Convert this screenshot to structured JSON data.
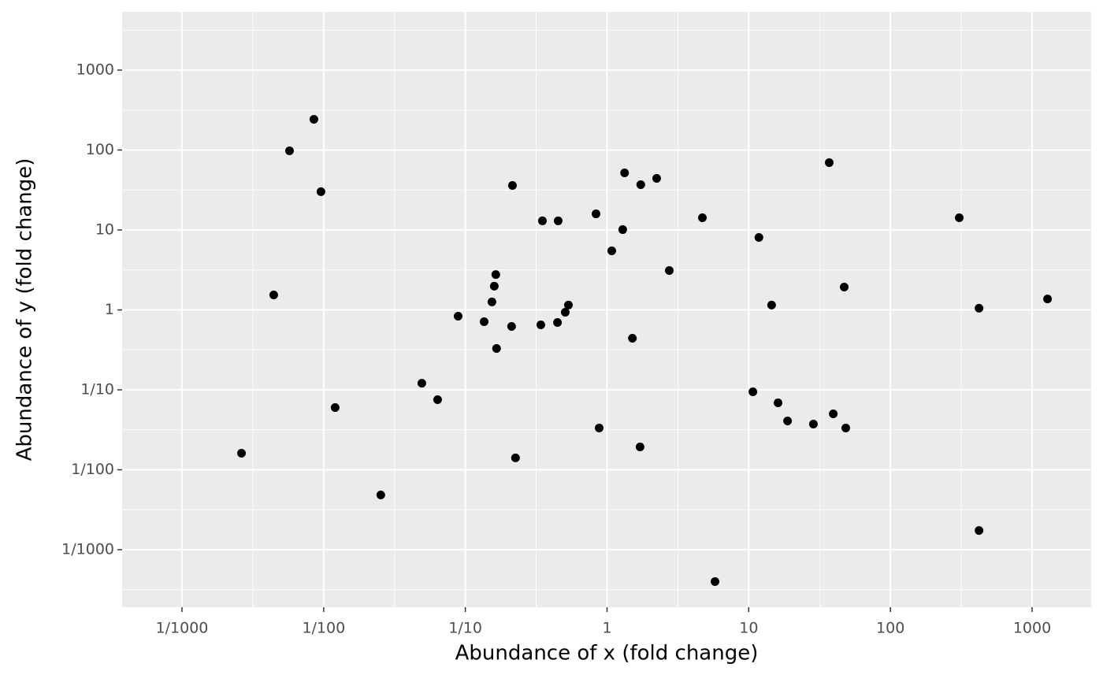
{
  "chart_data": {
    "type": "scatter",
    "xlabel": "Abundance of x (fold change)",
    "ylabel": "Abundance of y (fold change)",
    "xscale": "log",
    "yscale": "log",
    "grid": true,
    "color": "#000000",
    "xlim": [
      0.000378,
      2612
    ],
    "ylim": [
      0.000191,
      5357
    ],
    "xticks": [
      {
        "value": 0.001,
        "label": "1/1000"
      },
      {
        "value": 0.01,
        "label": "1/100"
      },
      {
        "value": 0.1,
        "label": "1/10"
      },
      1,
      10,
      100,
      1000
    ],
    "yticks": [
      {
        "value": 0.001,
        "label": "1/1000"
      },
      {
        "value": 0.01,
        "label": "1/100"
      },
      {
        "value": 0.1,
        "label": "1/10"
      },
      1,
      10,
      100,
      1000
    ],
    "x": [
      0.00263,
      0.00444,
      0.00574,
      0.00853,
      0.00957,
      0.01205,
      0.0253,
      0.0493,
      0.0637,
      0.0889,
      0.1357,
      0.154,
      0.16,
      0.164,
      0.166,
      0.212,
      0.215,
      0.226,
      0.341,
      0.35,
      0.447,
      0.452,
      0.507,
      0.534,
      0.836,
      0.88,
      1.08,
      1.29,
      1.33,
      1.51,
      1.71,
      1.73,
      2.24,
      2.75,
      4.71,
      5.78,
      10.7,
      11.8,
      14.5,
      16.1,
      18.8,
      28.6,
      37.0,
      39.5,
      47.2,
      48.4,
      306,
      422,
      422,
      1285
    ],
    "values": [
      0.0161,
      1.54,
      97.7,
      242,
      30.1,
      0.06,
      0.00484,
      0.121,
      0.0753,
      0.834,
      0.711,
      1.26,
      1.98,
      2.77,
      0.329,
      0.621,
      36.0,
      0.0141,
      0.65,
      13.0,
      0.696,
      13.0,
      0.934,
      1.15,
      15.9,
      0.0333,
      5.48,
      10.1,
      51.8,
      0.442,
      0.0193,
      36.9,
      44.2,
      3.11,
      14.2,
      0.000399,
      0.0945,
      8.06,
      1.15,
      0.0688,
      0.0408,
      0.0373,
      69.5,
      0.0501,
      1.93,
      0.0333,
      14.2,
      0.00174,
      1.05,
      1.37
    ]
  }
}
